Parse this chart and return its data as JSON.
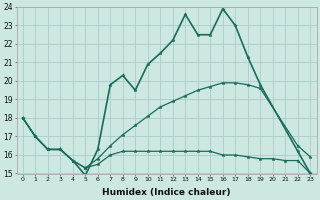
{
  "xlabel": "Humidex (Indice chaleur)",
  "background_color": "#cce8e0",
  "grid_color": "#aacccc",
  "line_color": "#1a6b5a",
  "xlim": [
    -0.5,
    23.5
  ],
  "ylim": [
    15,
    24
  ],
  "xticks": [
    0,
    1,
    2,
    3,
    4,
    5,
    6,
    7,
    8,
    9,
    10,
    11,
    12,
    13,
    14,
    15,
    16,
    17,
    18,
    19,
    20,
    21,
    22,
    23
  ],
  "yticks": [
    15,
    16,
    17,
    18,
    19,
    20,
    21,
    22,
    23,
    24
  ],
  "line1_x": [
    0,
    1,
    2,
    3,
    4,
    5,
    6,
    7,
    8,
    9,
    10,
    11,
    12,
    13,
    14,
    15,
    16,
    17,
    18,
    19,
    22,
    23
  ],
  "line1_y": [
    18,
    17,
    16.3,
    16.3,
    15.7,
    14.9,
    16.3,
    19.8,
    20.3,
    19.5,
    20.9,
    21.5,
    22.2,
    23.6,
    22.5,
    22.5,
    23.9,
    23.0,
    21.3,
    19.8,
    16.2,
    15.0
  ],
  "line2_x": [
    0,
    1,
    2,
    3,
    4,
    5,
    6,
    7,
    8,
    9,
    10,
    11,
    12,
    13,
    14,
    15,
    16,
    17,
    18,
    19,
    20,
    21,
    22,
    23
  ],
  "line2_y": [
    18,
    17,
    16.3,
    16.3,
    15.7,
    15.3,
    15.5,
    16.0,
    16.2,
    16.2,
    16.2,
    16.2,
    16.2,
    16.2,
    16.2,
    16.2,
    16.0,
    16.0,
    15.9,
    15.8,
    15.8,
    15.7,
    15.7,
    15.0
  ],
  "line3_x": [
    0,
    1,
    2,
    3,
    4,
    5,
    6,
    7,
    8,
    9,
    10,
    11,
    12,
    13,
    14,
    15,
    16,
    17,
    18,
    19,
    22,
    23
  ],
  "line3_y": [
    18,
    17,
    16.3,
    16.3,
    15.7,
    15.3,
    15.8,
    16.5,
    17.1,
    17.6,
    18.1,
    18.6,
    18.9,
    19.2,
    19.5,
    19.7,
    19.9,
    19.9,
    19.8,
    19.6,
    16.5,
    15.9
  ]
}
